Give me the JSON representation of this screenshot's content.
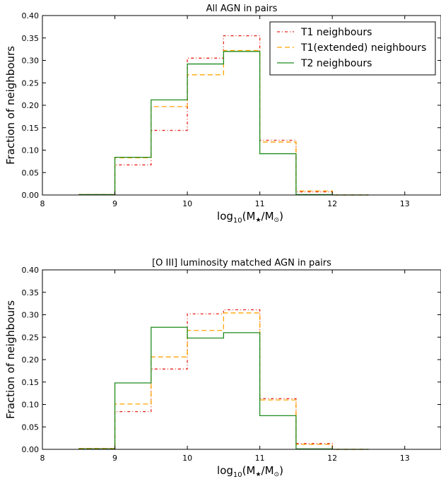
{
  "chart_data": [
    {
      "type": "line",
      "title": "All AGN in pairs",
      "xlabel_prefix": "log",
      "xlabel_sub": "10",
      "xlabel_main": "(M",
      "xlabel_star": "★",
      "xlabel_mid": "/M",
      "xlabel_sun": "⊙",
      "xlabel_end": ")",
      "ylabel": "Fraction of neighbours",
      "xlim": [
        8,
        13.5
      ],
      "ylim": [
        0,
        0.4
      ],
      "xticks": [
        8,
        9,
        10,
        11,
        12,
        13
      ],
      "yticks": [
        0.0,
        0.05,
        0.1,
        0.15,
        0.2,
        0.25,
        0.3,
        0.35,
        0.4
      ],
      "bin_edges": [
        8.5,
        9.0,
        9.5,
        10.0,
        10.5,
        11.0,
        11.5,
        12.0,
        12.5
      ],
      "legend_position": "top-right",
      "series": [
        {
          "name": "T1 neighbours",
          "color": "#e8241a",
          "style": "dashdot",
          "values": [
            0.001,
            0.067,
            0.144,
            0.305,
            0.355,
            0.122,
            0.007,
            0.0
          ]
        },
        {
          "name": "T1(extended) neighbours",
          "color": "#ffa500",
          "style": "dashed",
          "values": [
            0.001,
            0.083,
            0.197,
            0.268,
            0.322,
            0.118,
            0.009,
            0.0
          ]
        },
        {
          "name": "T2 neighbours",
          "color": "#1e8c1e",
          "style": "solid",
          "values": [
            0.001,
            0.084,
            0.212,
            0.292,
            0.32,
            0.092,
            0.001,
            0.0
          ]
        }
      ]
    },
    {
      "type": "line",
      "title": "[O III] luminosity matched AGN in pairs",
      "xlabel_prefix": "log",
      "xlabel_sub": "10",
      "xlabel_main": "(M",
      "xlabel_star": "★",
      "xlabel_mid": "/M",
      "xlabel_sun": "⊙",
      "xlabel_end": ")",
      "ylabel": "Fraction of neighbours",
      "xlim": [
        8,
        13.5
      ],
      "ylim": [
        0,
        0.4
      ],
      "xticks": [
        8,
        9,
        10,
        11,
        12,
        13
      ],
      "yticks": [
        0.0,
        0.05,
        0.1,
        0.15,
        0.2,
        0.25,
        0.3,
        0.35,
        0.4
      ],
      "bin_edges": [
        8.5,
        9.0,
        9.5,
        10.0,
        10.5,
        11.0,
        11.5,
        12.0,
        12.5
      ],
      "series": [
        {
          "name": "T1 neighbours",
          "color": "#e8241a",
          "style": "dashdot",
          "values": [
            0.002,
            0.084,
            0.179,
            0.302,
            0.311,
            0.113,
            0.013,
            0.0
          ]
        },
        {
          "name": "T1(extended) neighbours",
          "color": "#ffa500",
          "style": "dashed",
          "values": [
            0.002,
            0.101,
            0.206,
            0.265,
            0.304,
            0.11,
            0.011,
            0.0
          ]
        },
        {
          "name": "T2 neighbours",
          "color": "#1e8c1e",
          "style": "solid",
          "values": [
            0.001,
            0.148,
            0.272,
            0.248,
            0.26,
            0.075,
            0.001,
            0.0
          ]
        }
      ]
    }
  ]
}
